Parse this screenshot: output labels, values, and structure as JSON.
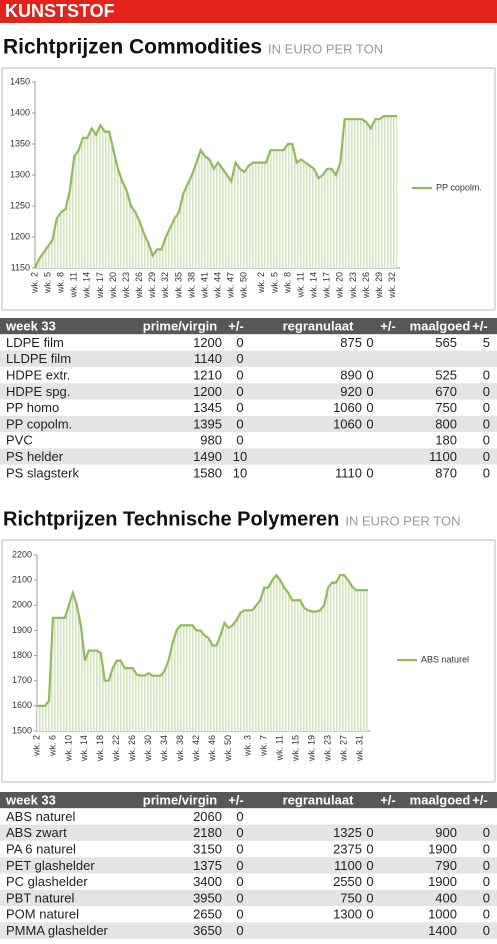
{
  "header": {
    "title": "KUNSTSTOF"
  },
  "sections": [
    {
      "title": "Richtprijzen Commodities",
      "unit": "IN EURO PER TON",
      "table": {
        "columns": [
          "week 33",
          "prime/virgin",
          "+/-",
          "regranulaat",
          "+/-",
          "maalgoed",
          "+/-"
        ],
        "rows": [
          [
            "LDPE film",
            1200,
            0,
            875,
            0,
            565,
            5
          ],
          [
            "LLDPE film",
            1140,
            0,
            null,
            null,
            null,
            null
          ],
          [
            "HDPE extr.",
            1210,
            0,
            890,
            0,
            525,
            0
          ],
          [
            "HDPE spg.",
            1200,
            0,
            920,
            0,
            670,
            0
          ],
          [
            "PP homo",
            1345,
            0,
            1060,
            0,
            750,
            0
          ],
          [
            "PP copolm.",
            1395,
            0,
            1060,
            0,
            800,
            0
          ],
          [
            "PVC",
            980,
            0,
            null,
            null,
            180,
            0
          ],
          [
            "PS helder",
            1490,
            10,
            null,
            null,
            1100,
            0
          ],
          [
            "PS slagsterk",
            1580,
            10,
            1110,
            0,
            870,
            0
          ]
        ]
      }
    },
    {
      "title": "Richtprijzen Technische Polymeren",
      "unit": "IN EURO PER TON",
      "table": {
        "columns": [
          "week 33",
          "prime/virgin",
          "+/-",
          "regranulaat",
          "+/-",
          "maalgoed",
          "+/-"
        ],
        "rows": [
          [
            "ABS naturel",
            2060,
            0,
            null,
            null,
            null,
            null
          ],
          [
            "ABS zwart",
            2180,
            0,
            1325,
            0,
            900,
            0
          ],
          [
            "PA 6 naturel",
            3150,
            0,
            2375,
            0,
            1900,
            0
          ],
          [
            "PET glashelder",
            1375,
            0,
            1100,
            0,
            790,
            0
          ],
          [
            "PC glashelder",
            3400,
            0,
            2550,
            0,
            1900,
            0
          ],
          [
            "PBT naturel",
            3950,
            0,
            750,
            0,
            400,
            0
          ],
          [
            "POM naturel",
            2650,
            0,
            1300,
            0,
            1000,
            0
          ],
          [
            "PMMA glashelder",
            3650,
            0,
            null,
            null,
            1400,
            0
          ]
        ]
      }
    }
  ],
  "chart_data": [
    {
      "type": "line",
      "legend": "right",
      "fill_color": "#dce9c8",
      "categories": [
        "wk. 2",
        null,
        null,
        "wk. 5",
        null,
        null,
        "wk. 8",
        null,
        null,
        "wk. 11",
        null,
        null,
        "wk. 14",
        null,
        null,
        "wk. 17",
        null,
        null,
        "wk. 20",
        null,
        null,
        "wk. 23",
        null,
        null,
        "wk. 26",
        null,
        null,
        "wk. 29",
        null,
        null,
        "wk. 32",
        null,
        null,
        "wk. 35",
        null,
        null,
        "wk. 38",
        null,
        null,
        "wk. 41",
        null,
        null,
        "wk. 44",
        null,
        null,
        "wk. 47",
        null,
        null,
        "wk. 50",
        null,
        null,
        null,
        "wk. 2",
        null,
        null,
        "wk. 5",
        null,
        null,
        "wk. 8",
        null,
        null,
        "wk. 11",
        null,
        null,
        "wk. 14",
        null,
        null,
        "wk. 17",
        null,
        null,
        "wk. 20",
        null,
        null,
        "wk. 23",
        null,
        null,
        "wk. 26",
        null,
        null,
        "wk. 29",
        null,
        null,
        "wk. 32",
        null
      ],
      "series": [
        {
          "name": "PP copolm.",
          "color": "#8fbc5a",
          "values": [
            1150,
            1165,
            1175,
            1185,
            1195,
            1230,
            1240,
            1245,
            1275,
            1330,
            1340,
            1360,
            1360,
            1375,
            1365,
            1380,
            1370,
            1370,
            1340,
            1310,
            1290,
            1275,
            1250,
            1240,
            1225,
            1205,
            1190,
            1170,
            1180,
            1180,
            1200,
            1215,
            1230,
            1240,
            1270,
            1285,
            1300,
            1320,
            1340,
            1330,
            1325,
            1310,
            1320,
            1310,
            1300,
            1290,
            1320,
            1310,
            1305,
            1315,
            1320,
            1320,
            1320,
            1320,
            1340,
            1340,
            1340,
            1340,
            1350,
            1350,
            1320,
            1325,
            1320,
            1315,
            1310,
            1295,
            1300,
            1310,
            1310,
            1300,
            1320,
            1390,
            1390,
            1390,
            1390,
            1390,
            1385,
            1375,
            1390,
            1390,
            1395,
            1395,
            1395,
            1395
          ]
        }
      ],
      "ylim": [
        1150,
        1450
      ],
      "yticks": [
        1150,
        1200,
        1250,
        1300,
        1350,
        1400,
        1450
      ]
    },
    {
      "type": "line",
      "legend": "right",
      "fill_color": "#dce9c8",
      "categories": [
        "wk. 2",
        null,
        null,
        null,
        "wk. 6",
        null,
        null,
        null,
        "wk. 10",
        null,
        null,
        null,
        "wk. 14",
        null,
        null,
        null,
        "wk. 18",
        null,
        null,
        null,
        "wk. 22",
        null,
        null,
        null,
        "wk. 26",
        null,
        null,
        null,
        "wk. 30",
        null,
        null,
        null,
        "wk. 34",
        null,
        null,
        null,
        "wk. 38",
        null,
        null,
        null,
        "wk. 42",
        null,
        null,
        null,
        "wk. 46",
        null,
        null,
        null,
        "wk. 50",
        null,
        null,
        null,
        null,
        "wk. 3",
        null,
        null,
        null,
        "wk. 7",
        null,
        null,
        null,
        "wk. 11",
        null,
        null,
        null,
        "wk. 15",
        null,
        null,
        null,
        "wk. 19",
        null,
        null,
        null,
        "wk. 23",
        null,
        null,
        null,
        "wk. 27",
        null,
        null,
        null,
        "wk. 31",
        null,
        null
      ],
      "series": [
        {
          "name": "ABS naturel",
          "color": "#8fbc5a",
          "values": [
            1600,
            1600,
            1600,
            1620,
            1950,
            1950,
            1950,
            1950,
            2000,
            2050,
            2000,
            1920,
            1780,
            1820,
            1820,
            1820,
            1810,
            1700,
            1700,
            1750,
            1780,
            1780,
            1750,
            1750,
            1750,
            1725,
            1720,
            1720,
            1730,
            1720,
            1720,
            1720,
            1740,
            1780,
            1850,
            1900,
            1920,
            1920,
            1920,
            1920,
            1900,
            1900,
            1880,
            1870,
            1840,
            1840,
            1880,
            1930,
            1910,
            1920,
            1940,
            1970,
            1980,
            1980,
            1980,
            2000,
            2020,
            2070,
            2070,
            2100,
            2120,
            2100,
            2070,
            2050,
            2020,
            2020,
            2020,
            1990,
            1980,
            1975,
            1975,
            1980,
            2000,
            2070,
            2090,
            2090,
            2120,
            2120,
            2100,
            2075,
            2060,
            2060,
            2060,
            2060
          ]
        }
      ],
      "ylim": [
        1500,
        2200
      ],
      "yticks": [
        1500,
        1600,
        1700,
        1800,
        1900,
        2000,
        2100,
        2200
      ]
    }
  ]
}
